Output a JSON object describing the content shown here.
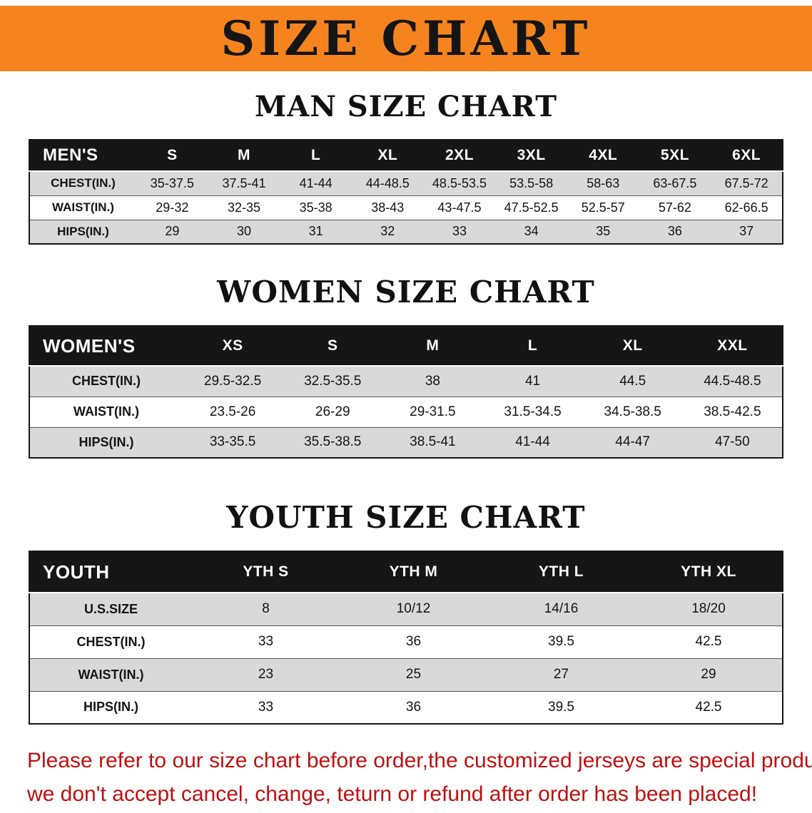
{
  "banner": {
    "title": "SIZE CHART"
  },
  "colors": {
    "banner_bg": "#f5841f",
    "table_header_bg": "#161616",
    "row_stripe": "#d9d9d9",
    "disclaimer_text": "#c01010"
  },
  "sections": [
    {
      "heading": "MAN SIZE CHART",
      "table": {
        "label": "MEN'S",
        "columns": [
          "S",
          "M",
          "L",
          "XL",
          "2XL",
          "3XL",
          "4XL",
          "5XL",
          "6XL"
        ],
        "rows": [
          {
            "label": "CHEST(IN.)",
            "values": [
              "35-37.5",
              "37.5-41",
              "41-44",
              "44-48.5",
              "48.5-53.5",
              "53.5-58",
              "58-63",
              "63-67.5",
              "67.5-72"
            ]
          },
          {
            "label": "WAIST(IN.)",
            "values": [
              "29-32",
              "32-35",
              "35-38",
              "38-43",
              "43-47.5",
              "47.5-52.5",
              "52.5-57",
              "57-62",
              "62-66.5"
            ]
          },
          {
            "label": "HIPS(IN.)",
            "values": [
              "29",
              "30",
              "31",
              "32",
              "33",
              "34",
              "35",
              "36",
              "37"
            ]
          }
        ]
      }
    },
    {
      "heading": "WOMEN SIZE CHART",
      "table": {
        "label": "WOMEN'S",
        "columns": [
          "XS",
          "S",
          "M",
          "L",
          "XL",
          "XXL"
        ],
        "rows": [
          {
            "label": "CHEST(IN.)",
            "values": [
              "29.5-32.5",
              "32.5-35.5",
              "38",
              "41",
              "44.5",
              "44.5-48.5"
            ]
          },
          {
            "label": "WAIST(IN.)",
            "values": [
              "23.5-26",
              "26-29",
              "29-31.5",
              "31.5-34.5",
              "34.5-38.5",
              "38.5-42.5"
            ]
          },
          {
            "label": "HIPS(IN.)",
            "values": [
              "33-35.5",
              "35.5-38.5",
              "38.5-41",
              "41-44",
              "44-47",
              "47-50"
            ]
          }
        ]
      }
    },
    {
      "heading": "YOUTH SIZE CHART",
      "table": {
        "label": "YOUTH",
        "columns": [
          "YTH S",
          "YTH M",
          "YTH L",
          "YTH XL"
        ],
        "rows": [
          {
            "label": "U.S.SIZE",
            "values": [
              "8",
              "10/12",
              "14/16",
              "18/20"
            ]
          },
          {
            "label": "CHEST(IN.)",
            "values": [
              "33",
              "36",
              "39.5",
              "42.5"
            ]
          },
          {
            "label": "WAIST(IN.)",
            "values": [
              "23",
              "25",
              "27",
              "29"
            ]
          },
          {
            "label": "HIPS(IN.)",
            "values": [
              "33",
              "36",
              "39.5",
              "42.5"
            ]
          }
        ]
      }
    }
  ],
  "footer": {
    "line1": "Please refer to our size chart before order,the customized jerseys are special products,",
    "line2": "we don't accept cancel, change, teturn or refund after order has been placed!"
  }
}
